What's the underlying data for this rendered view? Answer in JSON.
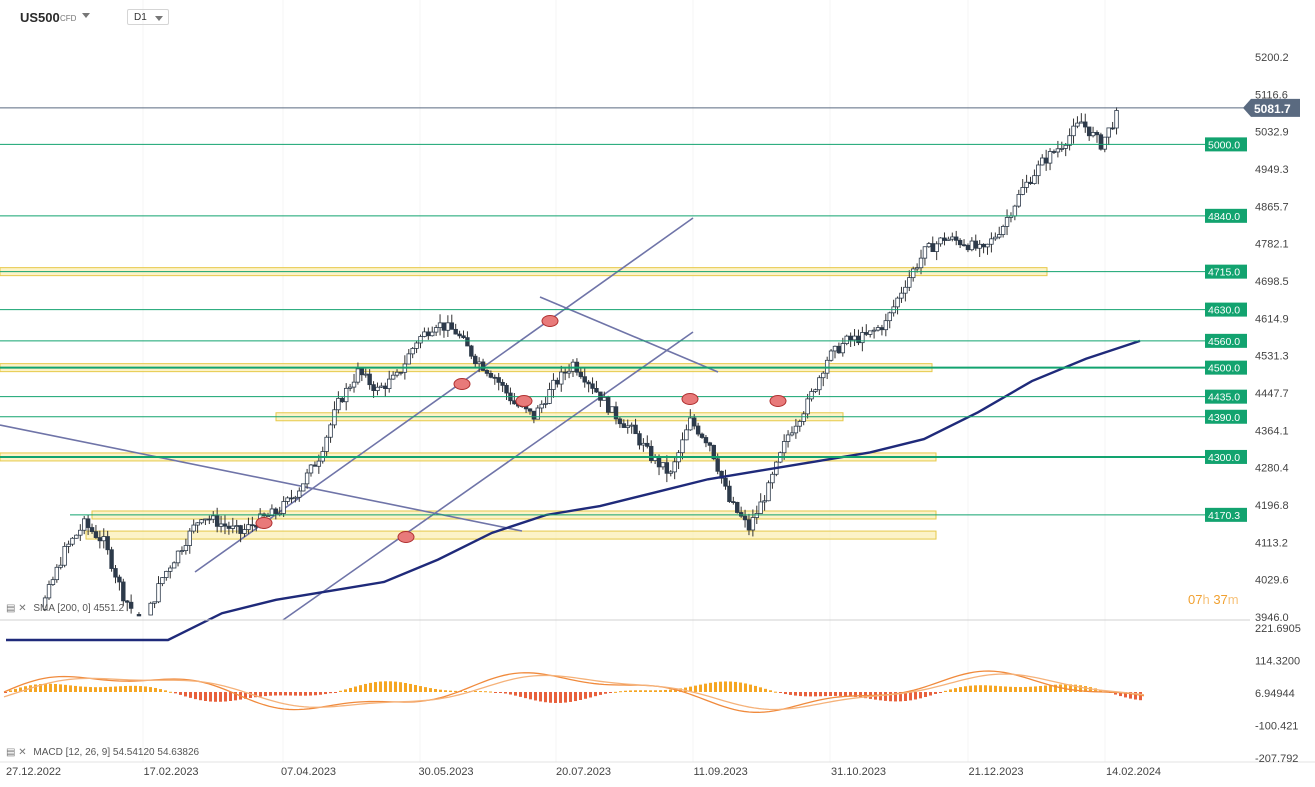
{
  "header": {
    "symbol": "US500",
    "symbol_type": "CFD",
    "timeframe": "D1"
  },
  "price_axis": {
    "ticks": [
      "5200.2",
      "5116.6",
      "5032.9",
      "4949.3",
      "4865.7",
      "4782.1",
      "4698.5",
      "4614.9",
      "4531.3",
      "4447.7",
      "4364.1",
      "4280.4",
      "4196.8",
      "4113.2",
      "4029.6",
      "3946.0"
    ],
    "current_price": "5081.7"
  },
  "levels": [
    {
      "label": "5000.0",
      "value": 5000
    },
    {
      "label": "4840.0",
      "value": 4840
    },
    {
      "label": "4715.0",
      "value": 4715
    },
    {
      "label": "4630.0",
      "value": 4630
    },
    {
      "label": "4560.0",
      "value": 4560
    },
    {
      "label": "4500.0",
      "value": 4500
    },
    {
      "label": "4435.0",
      "value": 4435
    },
    {
      "label": "4390.0",
      "value": 4390
    },
    {
      "label": "4300.0",
      "value": 4300
    },
    {
      "label": "4170.3",
      "value": 4170.3
    }
  ],
  "level_color": "#12a36f",
  "macd_axis": {
    "ticks": [
      "221.6905",
      "114.3200",
      "6.94944",
      "-100.421",
      "-207.792"
    ]
  },
  "time_axis": {
    "labels": [
      "27.12.2022",
      "17.02.2023",
      "07.04.2023",
      "30.05.2023",
      "20.07.2023",
      "11.09.2023",
      "31.10.2023",
      "21.12.2023",
      "14.02.2024"
    ]
  },
  "indicators": {
    "sma_label": "SMA",
    "sma_params": "[200, 0]",
    "sma_value": "4551.2",
    "macd_label": "MACD",
    "macd_params": "[12, 26, 9]",
    "macd_value1": "54.54120",
    "macd_value2": "54.63826"
  },
  "countdown": {
    "hours": "07",
    "h": "h",
    "minutes": "37",
    "m": "m"
  },
  "chart_data": {
    "type": "candlestick",
    "instrument": "US500",
    "timeframe": "D1",
    "ylim": [
      3946.0,
      5200.2
    ],
    "x": [
      "27.12.2022",
      "17.02.2023",
      "07.04.2023",
      "30.05.2023",
      "20.07.2023",
      "11.09.2023",
      "31.10.2023",
      "21.12.2023",
      "14.02.2024"
    ],
    "close_path": [
      3850,
      3910,
      3980,
      4090,
      4150,
      4110,
      3990,
      3920,
      4030,
      4100,
      4170,
      4150,
      4130,
      4160,
      4180,
      4230,
      4300,
      4420,
      4490,
      4450,
      4480,
      4560,
      4600,
      4580,
      4520,
      4480,
      4420,
      4390,
      4460,
      4510,
      4460,
      4400,
      4360,
      4300,
      4260,
      4380,
      4330,
      4200,
      4140,
      4230,
      4350,
      4420,
      4520,
      4560,
      4570,
      4600,
      4690,
      4760,
      4790,
      4780,
      4760,
      4820,
      4900,
      4960,
      5000,
      5050,
      5000,
      5080
    ],
    "sma200_path": [
      3880,
      3860,
      3850,
      3890,
      3950,
      3980,
      4000,
      4020,
      4070,
      4130,
      4170,
      4190,
      4220,
      4250,
      4270,
      4290,
      4310,
      4340,
      4400,
      4470,
      4520,
      4560
    ],
    "macd_series": [
      {
        "name": "MACD",
        "value": 54.5412
      },
      {
        "name": "Signal",
        "value": 54.63826
      }
    ],
    "grid": true
  }
}
